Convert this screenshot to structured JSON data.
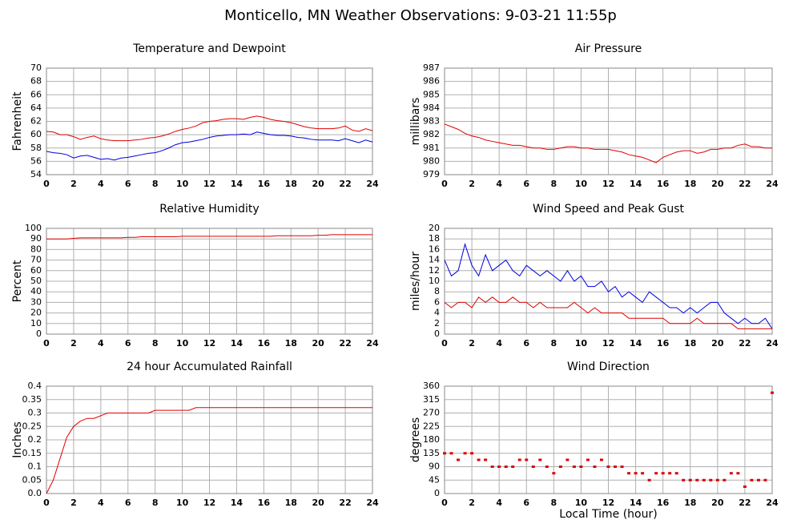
{
  "title": "Monticello, MN Weather Observations: 9-03-21 11:55p",
  "chart_data": [
    {
      "type": "line",
      "title": "Temperature and Dewpoint",
      "y_label": "Fahrenheit",
      "x": [
        0,
        0.5,
        1,
        1.5,
        2,
        2.5,
        3,
        3.5,
        4,
        4.5,
        5,
        5.5,
        6,
        6.5,
        7,
        7.5,
        8,
        8.5,
        9,
        9.5,
        10,
        10.5,
        11,
        11.5,
        12,
        12.5,
        13,
        13.5,
        14,
        14.5,
        15,
        15.5,
        16,
        16.5,
        17,
        17.5,
        18,
        18.5,
        19,
        19.5,
        20,
        20.5,
        21,
        21.5,
        22,
        22.5,
        23,
        23.5,
        24
      ],
      "series": [
        {
          "name": "Temperature",
          "color": "#e00000",
          "values": [
            60.5,
            60.4,
            60.0,
            60.0,
            59.7,
            59.3,
            59.6,
            59.8,
            59.4,
            59.2,
            59.1,
            59.1,
            59.1,
            59.2,
            59.3,
            59.5,
            59.6,
            59.8,
            60.1,
            60.5,
            60.8,
            61.0,
            61.3,
            61.8,
            62.0,
            62.1,
            62.3,
            62.4,
            62.4,
            62.3,
            62.6,
            62.8,
            62.6,
            62.3,
            62.1,
            62.0,
            61.8,
            61.5,
            61.2,
            61.0,
            60.9,
            60.9,
            60.9,
            61.0,
            61.3,
            60.7,
            60.5,
            60.9,
            60.6
          ]
        },
        {
          "name": "Dewpoint",
          "color": "#0000e0",
          "values": [
            57.5,
            57.3,
            57.2,
            57.0,
            56.5,
            56.8,
            56.9,
            56.6,
            56.3,
            56.4,
            56.2,
            56.5,
            56.6,
            56.8,
            57.0,
            57.2,
            57.3,
            57.6,
            58.0,
            58.5,
            58.8,
            58.9,
            59.1,
            59.3,
            59.6,
            59.8,
            59.9,
            60.0,
            60.0,
            60.1,
            60.0,
            60.4,
            60.2,
            60.0,
            59.9,
            59.9,
            59.8,
            59.6,
            59.5,
            59.3,
            59.2,
            59.2,
            59.2,
            59.1,
            59.4,
            59.1,
            58.8,
            59.2,
            58.9
          ]
        }
      ],
      "xlim": [
        0,
        24
      ],
      "xticks": [
        0,
        2,
        4,
        6,
        8,
        10,
        12,
        14,
        16,
        18,
        20,
        22,
        24
      ],
      "ylim": [
        54,
        70
      ],
      "yticks": [
        54,
        56,
        58,
        60,
        62,
        64,
        66,
        68,
        70
      ],
      "grid": true
    },
    {
      "type": "line",
      "title": "Air Pressure",
      "y_label": "millibars",
      "x": [
        0,
        0.5,
        1,
        1.5,
        2,
        2.5,
        3,
        3.5,
        4,
        4.5,
        5,
        5.5,
        6,
        6.5,
        7,
        7.5,
        8,
        8.5,
        9,
        9.5,
        10,
        10.5,
        11,
        11.5,
        12,
        12.5,
        13,
        13.5,
        14,
        14.5,
        15,
        15.5,
        16,
        16.5,
        17,
        17.5,
        18,
        18.5,
        19,
        19.5,
        20,
        20.5,
        21,
        21.5,
        22,
        22.5,
        23,
        23.5,
        24
      ],
      "series": [
        {
          "name": "Pressure",
          "color": "#e00000",
          "values": [
            982.8,
            982.6,
            982.4,
            982.1,
            981.9,
            981.8,
            981.6,
            981.5,
            981.4,
            981.3,
            981.2,
            981.2,
            981.1,
            981.0,
            981.0,
            980.9,
            980.9,
            981.0,
            981.1,
            981.1,
            981.0,
            981.0,
            980.9,
            980.9,
            980.9,
            980.8,
            980.7,
            980.5,
            980.4,
            980.3,
            980.1,
            979.9,
            980.3,
            980.5,
            980.7,
            980.8,
            980.8,
            980.6,
            980.7,
            980.9,
            980.9,
            981.0,
            981.0,
            981.2,
            981.3,
            981.1,
            981.1,
            981.0,
            981.0
          ]
        }
      ],
      "xlim": [
        0,
        24
      ],
      "xticks": [
        0,
        2,
        4,
        6,
        8,
        10,
        12,
        14,
        16,
        18,
        20,
        22,
        24
      ],
      "ylim": [
        979,
        987
      ],
      "yticks": [
        979,
        980,
        981,
        982,
        983,
        984,
        985,
        986,
        987
      ],
      "grid": true
    },
    {
      "type": "line",
      "title": "Relative Humidity",
      "y_label": "Percent",
      "x": [
        0,
        0.5,
        1,
        1.5,
        2,
        2.5,
        3,
        3.5,
        4,
        4.5,
        5,
        5.5,
        6,
        6.5,
        7,
        7.5,
        8,
        8.5,
        9,
        9.5,
        10,
        10.5,
        11,
        11.5,
        12,
        12.5,
        13,
        13.5,
        14,
        14.5,
        15,
        15.5,
        16,
        16.5,
        17,
        17.5,
        18,
        18.5,
        19,
        19.5,
        20,
        20.5,
        21,
        21.5,
        22,
        22.5,
        23,
        23.5,
        24
      ],
      "series": [
        {
          "name": "Humidity",
          "color": "#e00000",
          "values": [
            90,
            90,
            90,
            90,
            90.5,
            91,
            91,
            91,
            91,
            91,
            91,
            91,
            91.5,
            91.5,
            92,
            92,
            92,
            92,
            92,
            92,
            92.5,
            92.5,
            92.5,
            92.5,
            92.5,
            92.5,
            92.5,
            92.5,
            92.5,
            92.5,
            92.5,
            92.5,
            92.5,
            92.5,
            93,
            93,
            93,
            93,
            93,
            93,
            93.5,
            93.5,
            94,
            94,
            94,
            94,
            94,
            94,
            94
          ]
        }
      ],
      "xlim": [
        0,
        24
      ],
      "xticks": [
        0,
        2,
        4,
        6,
        8,
        10,
        12,
        14,
        16,
        18,
        20,
        22,
        24
      ],
      "ylim": [
        0,
        100
      ],
      "yticks": [
        0,
        10,
        20,
        30,
        40,
        50,
        60,
        70,
        80,
        90,
        100
      ],
      "grid": true
    },
    {
      "type": "line",
      "title": "Wind Speed and Peak Gust",
      "y_label": "miles/hour",
      "x": [
        0,
        0.5,
        1,
        1.5,
        2,
        2.5,
        3,
        3.5,
        4,
        4.5,
        5,
        5.5,
        6,
        6.5,
        7,
        7.5,
        8,
        8.5,
        9,
        9.5,
        10,
        10.5,
        11,
        11.5,
        12,
        12.5,
        13,
        13.5,
        14,
        14.5,
        15,
        15.5,
        16,
        16.5,
        17,
        17.5,
        18,
        18.5,
        19,
        19.5,
        20,
        20.5,
        21,
        21.5,
        22,
        22.5,
        23,
        23.5,
        24
      ],
      "series": [
        {
          "name": "Peak Gust",
          "color": "#0000e0",
          "values": [
            14,
            11,
            12,
            17,
            13,
            11,
            15,
            12,
            13,
            14,
            12,
            11,
            13,
            12,
            11,
            12,
            11,
            10,
            12,
            10,
            11,
            9,
            9,
            10,
            8,
            9,
            7,
            8,
            7,
            6,
            8,
            7,
            6,
            5,
            5,
            4,
            5,
            4,
            5,
            6,
            6,
            4,
            3,
            2,
            3,
            2,
            2,
            3,
            1
          ]
        },
        {
          "name": "Wind Speed",
          "color": "#e00000",
          "values": [
            6,
            5,
            6,
            6,
            5,
            7,
            6,
            7,
            6,
            6,
            7,
            6,
            6,
            5,
            6,
            5,
            5,
            5,
            5,
            6,
            5,
            4,
            5,
            4,
            4,
            4,
            4,
            3,
            3,
            3,
            3,
            3,
            3,
            2,
            2,
            2,
            2,
            3,
            2,
            2,
            2,
            2,
            2,
            1,
            1,
            1,
            1,
            1,
            1
          ]
        }
      ],
      "xlim": [
        0,
        24
      ],
      "xticks": [
        0,
        2,
        4,
        6,
        8,
        10,
        12,
        14,
        16,
        18,
        20,
        22,
        24
      ],
      "ylim": [
        0,
        20
      ],
      "yticks": [
        0,
        2,
        4,
        6,
        8,
        10,
        12,
        14,
        16,
        18,
        20
      ],
      "grid": true
    },
    {
      "type": "line",
      "title": "24 hour Accumulated Rainfall",
      "y_label": "Inches",
      "x": [
        0,
        0.5,
        1,
        1.5,
        2,
        2.5,
        3,
        3.5,
        4,
        4.5,
        5,
        5.5,
        6,
        6.5,
        7,
        7.5,
        8,
        8.5,
        9,
        9.5,
        10,
        10.5,
        11,
        11.5,
        12,
        12.5,
        13,
        13.5,
        14,
        14.5,
        15,
        15.5,
        16,
        16.5,
        17,
        17.5,
        18,
        18.5,
        19,
        19.5,
        20,
        20.5,
        21,
        21.5,
        22,
        22.5,
        23,
        23.5,
        24
      ],
      "series": [
        {
          "name": "Rainfall",
          "color": "#e00000",
          "values": [
            0.0,
            0.05,
            0.13,
            0.21,
            0.25,
            0.27,
            0.28,
            0.28,
            0.29,
            0.3,
            0.3,
            0.3,
            0.3,
            0.3,
            0.3,
            0.3,
            0.31,
            0.31,
            0.31,
            0.31,
            0.31,
            0.31,
            0.32,
            0.32,
            0.32,
            0.32,
            0.32,
            0.32,
            0.32,
            0.32,
            0.32,
            0.32,
            0.32,
            0.32,
            0.32,
            0.32,
            0.32,
            0.32,
            0.32,
            0.32,
            0.32,
            0.32,
            0.32,
            0.32,
            0.32,
            0.32,
            0.32,
            0.32,
            0.32
          ]
        }
      ],
      "xlim": [
        0,
        24
      ],
      "xticks": [
        0,
        2,
        4,
        6,
        8,
        10,
        12,
        14,
        16,
        18,
        20,
        22,
        24
      ],
      "ylim": [
        0,
        0.4
      ],
      "yticks": [
        {
          "value": 0,
          "label": "0.0"
        },
        0.05,
        0.1,
        0.15,
        0.2,
        0.25,
        0.3,
        0.35,
        0.4
      ],
      "grid": true
    },
    {
      "type": "scatter",
      "title": "Wind Direction",
      "y_label": "degrees",
      "x_label": "Local Time (hour)",
      "x": [
        0,
        0.5,
        1,
        1.5,
        2,
        2.5,
        3,
        3.5,
        4,
        4.5,
        5,
        5.5,
        6,
        6.5,
        7,
        7.5,
        8,
        8.5,
        9,
        9.5,
        10,
        10.5,
        11,
        11.5,
        12,
        12.5,
        13,
        13.5,
        14,
        14.5,
        15,
        15.5,
        16,
        16.5,
        17,
        17.5,
        18,
        18.5,
        19,
        19.5,
        20,
        20.5,
        21,
        21.5,
        22,
        22.5,
        23,
        23.5,
        24
      ],
      "values": [
        135,
        135,
        113,
        135,
        135,
        113,
        113,
        90,
        90,
        90,
        90,
        113,
        113,
        90,
        113,
        90,
        68,
        90,
        113,
        90,
        90,
        113,
        90,
        113,
        90,
        90,
        90,
        68,
        68,
        68,
        45,
        68,
        68,
        68,
        68,
        45,
        45,
        45,
        45,
        45,
        45,
        45,
        68,
        68,
        23,
        45,
        45,
        45,
        338
      ],
      "color": "#e00000",
      "xlim": [
        0,
        24
      ],
      "xticks": [
        0,
        2,
        4,
        6,
        8,
        10,
        12,
        14,
        16,
        18,
        20,
        22,
        24
      ],
      "ylim": [
        0,
        360
      ],
      "yticks": [
        0,
        45,
        90,
        135,
        180,
        225,
        270,
        315,
        360
      ],
      "grid": true
    }
  ]
}
